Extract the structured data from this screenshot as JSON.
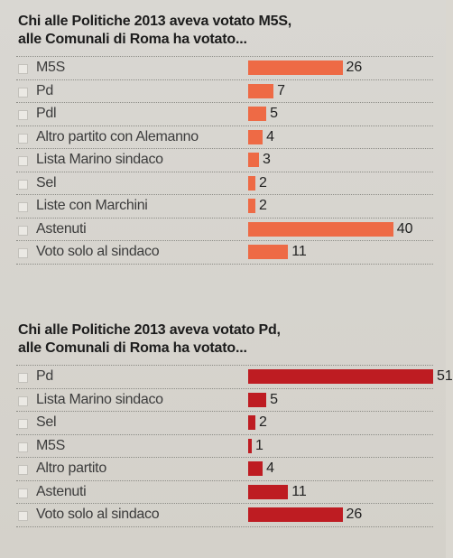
{
  "chart_data": [
    {
      "type": "bar",
      "orientation": "horizontal",
      "title": "Chi alle Politiche 2013 aveva votato M5S,",
      "subtitle": "alle Comunali di Roma ha votato...",
      "categories": [
        "M5S",
        "Pd",
        "Pdl",
        "Altro partito con Alemanno",
        "Lista Marino sindaco",
        "Sel",
        "Liste con Marchini",
        "Astenuti",
        "Voto solo al sindaco"
      ],
      "values": [
        26,
        7,
        5,
        4,
        3,
        2,
        2,
        40,
        11
      ],
      "color": "#ee6a45",
      "xlim": [
        0,
        51
      ]
    },
    {
      "type": "bar",
      "orientation": "horizontal",
      "title": "Chi alle Politiche 2013 aveva votato Pd,",
      "subtitle": "alle Comunali di Roma ha votato...",
      "categories": [
        "Pd",
        "Lista Marino sindaco",
        "Sel",
        "M5S",
        "Altro partito",
        "Astenuti",
        "Voto solo al sindaco"
      ],
      "values": [
        51,
        5,
        2,
        1,
        4,
        11,
        26
      ],
      "color": "#be1c22",
      "xlim": [
        0,
        51
      ]
    }
  ]
}
